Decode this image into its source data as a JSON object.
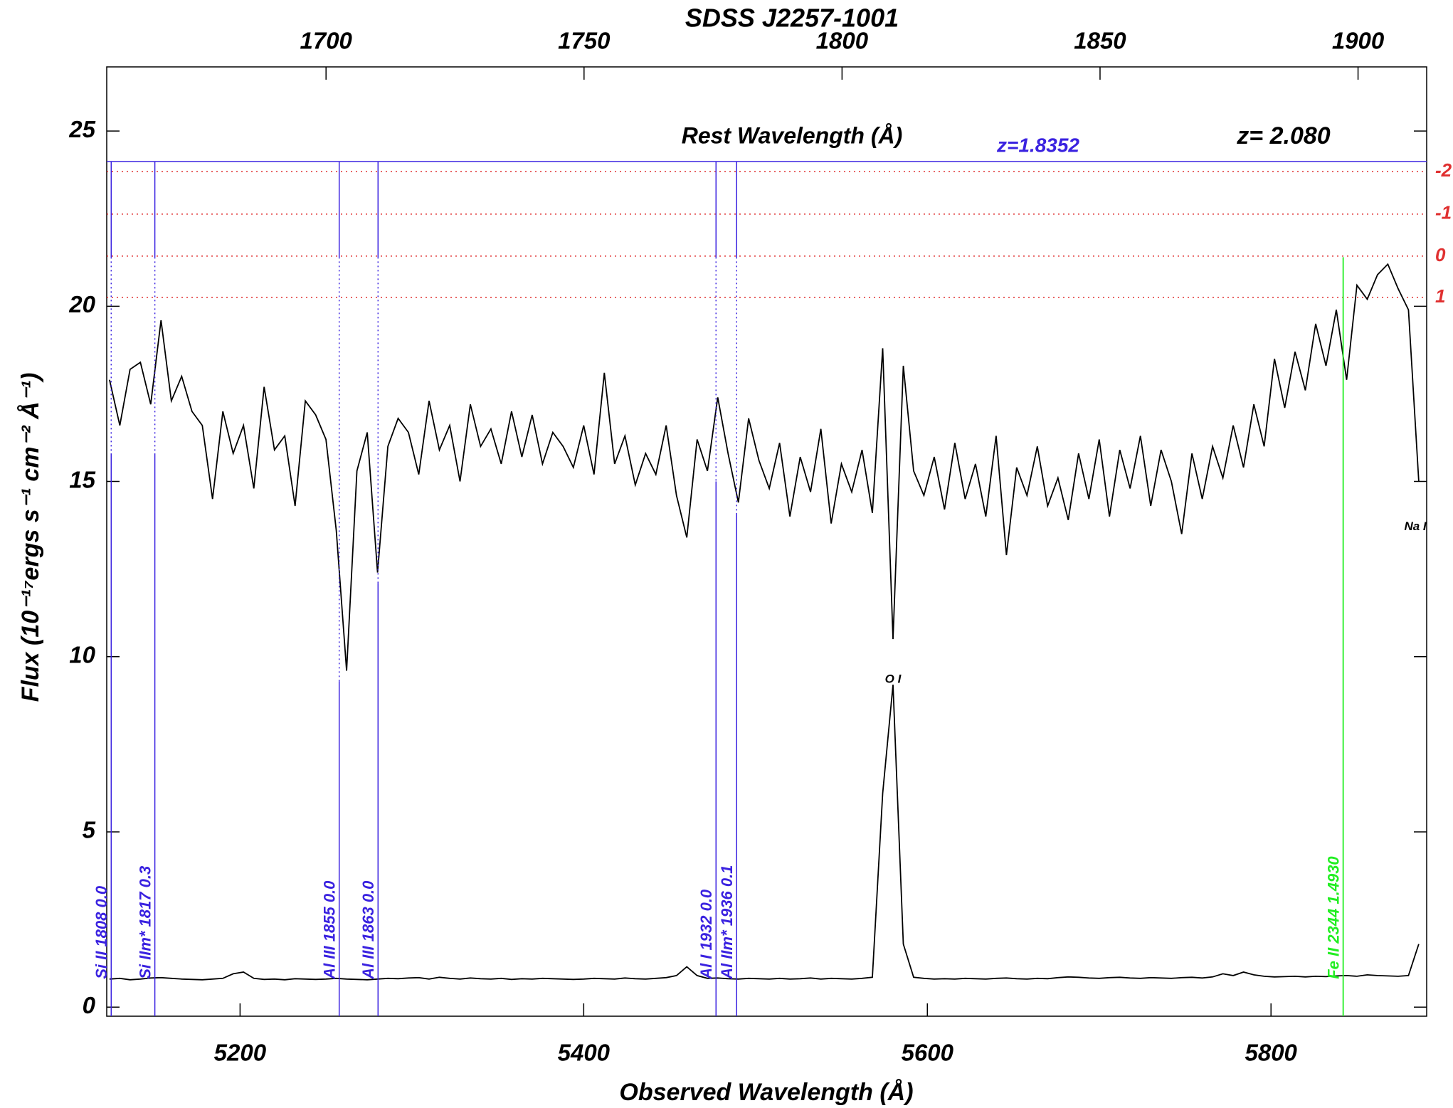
{
  "chart_data": {
    "type": "line",
    "title": "SDSS J2257-1001",
    "top_axis_label": "Rest Wavelength (Å)",
    "redshift_label": "z= 2.080",
    "absorber_label": "z=1.8352",
    "xlabel": "Observed Wavelength (Å)",
    "ylabel": "Flux (10⁻¹⁷ergs s⁻¹ cm⁻² Å⁻¹)",
    "xlim": [
      5122.4,
      5890.6
    ],
    "xticks": [
      5200,
      5400,
      5600,
      5800
    ],
    "x2lim": [
      1657.5,
      1913.3
    ],
    "x2ticks": [
      1700,
      1750,
      1800,
      1850,
      1900
    ],
    "ylim": [
      -0.26,
      26.83
    ],
    "yticks": [
      0,
      5,
      10,
      15,
      20,
      25
    ],
    "x": [
      5124,
      5130,
      5136,
      5142,
      5148,
      5154,
      5160,
      5166,
      5172,
      5178,
      5184,
      5190,
      5196,
      5202,
      5208,
      5214,
      5220,
      5226,
      5232,
      5238,
      5244,
      5250,
      5256,
      5262,
      5268,
      5274,
      5280,
      5286,
      5292,
      5298,
      5304,
      5310,
      5316,
      5322,
      5328,
      5334,
      5340,
      5346,
      5352,
      5358,
      5364,
      5370,
      5376,
      5382,
      5388,
      5394,
      5400,
      5406,
      5412,
      5418,
      5424,
      5430,
      5436,
      5442,
      5448,
      5454,
      5460,
      5466,
      5472,
      5478,
      5484,
      5490,
      5496,
      5502,
      5508,
      5514,
      5520,
      5526,
      5532,
      5538,
      5544,
      5550,
      5556,
      5562,
      5568,
      5574,
      5580,
      5586,
      5592,
      5598,
      5604,
      5610,
      5616,
      5622,
      5628,
      5634,
      5640,
      5646,
      5652,
      5658,
      5664,
      5670,
      5676,
      5682,
      5688,
      5694,
      5700,
      5706,
      5712,
      5718,
      5724,
      5730,
      5736,
      5742,
      5748,
      5754,
      5760,
      5766,
      5772,
      5778,
      5784,
      5790,
      5796,
      5802,
      5808,
      5814,
      5820,
      5826,
      5832,
      5838,
      5844,
      5850,
      5856,
      5862,
      5868,
      5874,
      5880,
      5886
    ],
    "series": [
      {
        "name": "flux",
        "color": "#000000",
        "values": [
          17.9,
          16.6,
          18.2,
          18.4,
          17.2,
          19.6,
          17.3,
          18.0,
          17.0,
          16.6,
          14.5,
          17.0,
          15.8,
          16.6,
          14.8,
          17.7,
          15.9,
          16.3,
          14.3,
          17.3,
          16.9,
          16.2,
          13.6,
          9.6,
          15.3,
          16.4,
          12.4,
          16.0,
          16.8,
          16.4,
          15.2,
          17.3,
          15.9,
          16.6,
          15.0,
          17.2,
          16.0,
          16.5,
          15.5,
          17.0,
          15.7,
          16.9,
          15.5,
          16.4,
          16.0,
          15.4,
          16.6,
          15.2,
          18.1,
          15.5,
          16.3,
          14.9,
          15.8,
          15.2,
          16.6,
          14.6,
          13.4,
          16.2,
          15.3,
          17.4,
          15.8,
          14.4,
          16.8,
          15.6,
          14.8,
          16.1,
          14.0,
          15.7,
          14.7,
          16.5,
          13.8,
          15.5,
          14.7,
          15.9,
          14.1,
          18.8,
          10.5,
          18.3,
          15.3,
          14.6,
          15.7,
          14.2,
          16.1,
          14.5,
          15.5,
          14.0,
          16.3,
          12.9,
          15.4,
          14.6,
          16.0,
          14.3,
          15.1,
          13.9,
          15.8,
          14.5,
          16.2,
          14.0,
          15.9,
          14.8,
          16.3,
          14.3,
          15.9,
          15.0,
          13.5,
          15.8,
          14.5,
          16.0,
          15.1,
          16.6,
          15.4,
          17.2,
          16.0,
          18.5,
          17.1,
          18.7,
          17.6,
          19.5,
          18.3,
          19.9,
          17.9,
          20.6,
          20.2,
          20.9,
          21.2,
          20.5,
          19.9,
          15.0
        ]
      },
      {
        "name": "error",
        "color": "#000000",
        "values": [
          0.8,
          0.82,
          0.78,
          0.8,
          0.83,
          0.84,
          0.82,
          0.8,
          0.79,
          0.78,
          0.8,
          0.82,
          0.95,
          1.0,
          0.82,
          0.79,
          0.8,
          0.78,
          0.81,
          0.8,
          0.79,
          0.8,
          0.82,
          0.8,
          0.79,
          0.78,
          0.8,
          0.82,
          0.81,
          0.83,
          0.84,
          0.8,
          0.85,
          0.82,
          0.8,
          0.83,
          0.81,
          0.8,
          0.82,
          0.79,
          0.81,
          0.8,
          0.82,
          0.81,
          0.8,
          0.79,
          0.8,
          0.82,
          0.81,
          0.8,
          0.83,
          0.81,
          0.8,
          0.82,
          0.84,
          0.9,
          1.15,
          0.9,
          0.82,
          0.83,
          0.81,
          0.8,
          0.82,
          0.81,
          0.8,
          0.82,
          0.8,
          0.81,
          0.83,
          0.8,
          0.82,
          0.81,
          0.8,
          0.82,
          0.85,
          6.1,
          9.2,
          1.8,
          0.85,
          0.82,
          0.8,
          0.81,
          0.8,
          0.82,
          0.81,
          0.8,
          0.82,
          0.83,
          0.81,
          0.8,
          0.82,
          0.81,
          0.84,
          0.86,
          0.85,
          0.83,
          0.82,
          0.84,
          0.85,
          0.83,
          0.82,
          0.84,
          0.83,
          0.82,
          0.84,
          0.85,
          0.83,
          0.86,
          0.95,
          0.9,
          1.0,
          0.92,
          0.88,
          0.86,
          0.87,
          0.88,
          0.86,
          0.88,
          0.87,
          0.89,
          0.9,
          0.88,
          0.92,
          0.9,
          0.89,
          0.88,
          0.9,
          1.8
        ]
      }
    ],
    "absorption_color": "#3a22e0",
    "absorption_lines": [
      {
        "wavelength": 5125,
        "label": "Si II 1808 0.0"
      },
      {
        "wavelength": 5150.4,
        "label": "Si IIm* 1817 0.3"
      },
      {
        "wavelength": 5257.7,
        "label": "Al III 1855 0.0"
      },
      {
        "wavelength": 5280.3,
        "label": "Al III 1863 0.0"
      },
      {
        "wavelength": 5477,
        "label": "Al I 1932 0.0"
      },
      {
        "wavelength": 5489,
        "label": "Al IIm* 1936 0.1"
      }
    ],
    "intervening_color": "#22ee22",
    "intervening_lines": [
      {
        "wavelength": 5842,
        "label": "Fe II 2344 1.4930"
      }
    ],
    "sigma_color": "#e03030",
    "sigma_lines": [
      {
        "value": 23.84,
        "label": "-2"
      },
      {
        "value": 22.63,
        "label": "-1"
      },
      {
        "value": 21.43,
        "label": "0"
      },
      {
        "value": 20.25,
        "label": "1"
      }
    ],
    "annotations": [
      {
        "text": "O I",
        "x": 5580,
        "y": 9.35
      },
      {
        "text": "Na I",
        "x": 5884,
        "y": 13.7
      }
    ]
  }
}
